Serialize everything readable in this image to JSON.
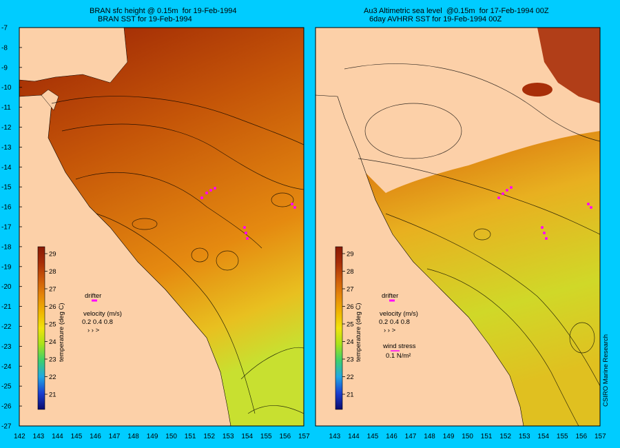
{
  "left_panel": {
    "title_line1": "BRAN sfc height @ 0.15m  for 19-Feb-1994",
    "title_line2": "BRAN SST for 19-Feb-1994",
    "colorbar_label": "temperature (deg C)",
    "drifter_label": "drifter",
    "velocity_label": "velocity (m/s)",
    "velocity_scale": "0.2 0.4 0.8"
  },
  "right_panel": {
    "title_line1": "Au3 Altimetric sea level  @0.15m  for 17-Feb-1994 00Z",
    "title_line2": "6day AVHRR SST for 19-Feb-1994 00Z",
    "colorbar_label": "temperature (deg C)",
    "drifter_label": "drifter",
    "velocity_label": "velocity (m/s)",
    "velocity_scale": "0.2 0.4 0.8",
    "wind_label": "wind stress",
    "wind_scale": "0.1 N/m²"
  },
  "colorbar_ticks": [
    "29",
    "28",
    "27",
    "26",
    "25",
    "24",
    "23",
    "22",
    "21"
  ],
  "lat_ticks": [
    "-7",
    "-8",
    "-9",
    "-10",
    "-11",
    "-12",
    "-13",
    "-14",
    "-15",
    "-16",
    "-17",
    "-18",
    "-19",
    "-20",
    "-21",
    "-22",
    "-23",
    "-24",
    "-25",
    "-26",
    "-27"
  ],
  "lon_ticks": [
    "142",
    "143",
    "144",
    "145",
    "146",
    "147",
    "148",
    "149",
    "150",
    "151",
    "152",
    "153",
    "154",
    "155",
    "156",
    "157"
  ],
  "credit": "CSIRO Marine Research",
  "colors": {
    "frame": "#00ccff",
    "land": "#fcd0a8",
    "drifter": "#ff00ff",
    "ramp": [
      "#0b0b6e",
      "#1a3fd0",
      "#21a7e3",
      "#3cd06e",
      "#a8e21a",
      "#f1e30d",
      "#f0b400",
      "#e5860a",
      "#cc5a0a",
      "#a82e08",
      "#8a1a05"
    ]
  }
}
